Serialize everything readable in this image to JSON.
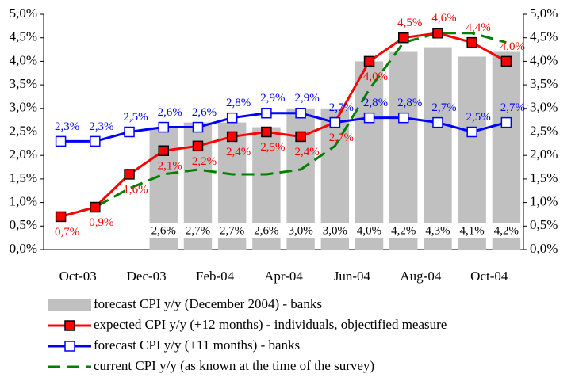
{
  "chart_data": {
    "type": "bar-line",
    "categories": [
      "Oct-03",
      null,
      "Dec-03",
      null,
      "Feb-04",
      null,
      "Apr-04",
      null,
      "Jun-04",
      null,
      "Aug-04",
      null,
      "Oct-04",
      null
    ],
    "ylim": [
      0,
      5
    ],
    "yticks": [
      {
        "value": 0,
        "label": "0,0%"
      },
      {
        "value": 0.5,
        "label": "0,5%"
      },
      {
        "value": 1,
        "label": "1,0%"
      },
      {
        "value": 1.5,
        "label": "1,5%"
      },
      {
        "value": 2,
        "label": "2,0%"
      },
      {
        "value": 2.5,
        "label": "2,5%"
      },
      {
        "value": 3,
        "label": "3,0%"
      },
      {
        "value": 3.5,
        "label": "3,5%"
      },
      {
        "value": 4,
        "label": "4,0%"
      },
      {
        "value": 4.5,
        "label": "4,5%"
      },
      {
        "value": 5,
        "label": "5,0%"
      }
    ],
    "y2lim": [
      0,
      5
    ],
    "y2ticks": [
      {
        "value": 0,
        "label": "0,0%"
      },
      {
        "value": 0.5,
        "label": "0,5%"
      },
      {
        "value": 1,
        "label": "1,0%"
      },
      {
        "value": 1.5,
        "label": "1,5%"
      },
      {
        "value": 2,
        "label": "2,0%"
      },
      {
        "value": 2.5,
        "label": "2,5%"
      },
      {
        "value": 3,
        "label": "3,0%"
      },
      {
        "value": 3.5,
        "label": "3,5%"
      },
      {
        "value": 4,
        "label": "4,0%"
      },
      {
        "value": 4.5,
        "label": "4,5%"
      },
      {
        "value": 5,
        "label": "5,0%"
      }
    ],
    "legend": "bottom",
    "series": [
      {
        "name": "forecast CPI y/y (December 2004) - banks",
        "kind": "bar",
        "color": "#c0c0c0",
        "values": [
          null,
          null,
          null,
          2.6,
          2.7,
          2.7,
          2.6,
          3.0,
          3.0,
          4.0,
          4.2,
          4.3,
          4.1,
          4.2
        ],
        "value_labels": [
          null,
          null,
          null,
          "2,6%",
          "2,7%",
          "2,7%",
          "2,6%",
          "3,0%",
          "3,0%",
          "4,0%",
          "4,2%",
          "4,3%",
          "4,1%",
          "4,2%"
        ]
      },
      {
        "name": "expected CPI y/y (+12 months) - individuals, objectified measure",
        "kind": "line",
        "marker": "filled-square",
        "color": "#ff0000",
        "values": [
          0.7,
          0.9,
          1.6,
          2.1,
          2.2,
          2.4,
          2.5,
          2.4,
          2.7,
          4.0,
          4.5,
          4.6,
          4.4,
          4.0
        ],
        "value_labels": [
          "0,7%",
          "0,9%",
          "1,6%",
          "2,1%",
          "2,2%",
          "2,4%",
          "2,5%",
          "2,4%",
          "2,7%",
          "4,0%",
          "4,5%",
          "4,6%",
          "4,4%",
          "4,0%"
        ]
      },
      {
        "name": "forecast CPI y/y (+11 months) - banks",
        "kind": "line",
        "marker": "open-square",
        "color": "#0000ff",
        "values": [
          2.3,
          2.3,
          2.5,
          2.6,
          2.6,
          2.8,
          2.9,
          2.9,
          2.7,
          2.8,
          2.8,
          2.7,
          2.5,
          2.7
        ],
        "value_labels": [
          "2,3%",
          "2,3%",
          "2,5%",
          "2,6%",
          "2,6%",
          "2,8%",
          "2,9%",
          "2,9%",
          "2,7%",
          "2,8%",
          "2,8%",
          "2,7%",
          "2,5%",
          "2,7%"
        ]
      },
      {
        "name": "current CPI y/y (as known at the time of the survey)",
        "kind": "dashed",
        "color": "#008000",
        "values": [
          0.7,
          0.9,
          1.3,
          1.6,
          1.7,
          1.6,
          1.6,
          1.7,
          2.2,
          3.4,
          4.4,
          4.6,
          4.6,
          4.4
        ]
      }
    ]
  }
}
